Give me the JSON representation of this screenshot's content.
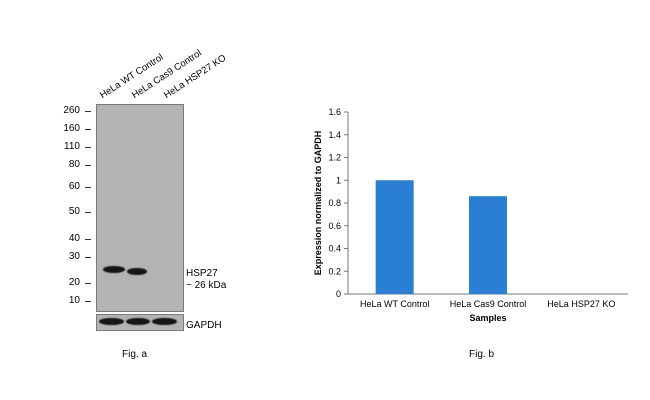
{
  "fig_a": {
    "lanes": [
      "HeLa WT Control",
      "HeLa Cas9 Control",
      "HeLa HSP27 KO"
    ],
    "markers": [
      "260",
      "160",
      "110",
      "80",
      "60",
      "50",
      "40",
      "30",
      "20",
      "10"
    ],
    "band_label_1": "HSP27",
    "band_label_2": "~ 26 kDa",
    "loading_control": "GAPDH",
    "caption": "Fig. a"
  },
  "chart_data": {
    "type": "bar",
    "categories": [
      "HeLa WT Control",
      "HeLa Cas9 Control",
      "HeLa HSP27 KO"
    ],
    "values": [
      1.0,
      0.86,
      0.0
    ],
    "xlabel": "Samples",
    "ylabel": "Expression normalized to GAPDH",
    "ylim": [
      0,
      1.6
    ],
    "yticks": [
      0,
      0.2,
      0.4,
      0.6,
      0.8,
      1,
      1.2,
      1.4,
      1.6
    ],
    "ytick_labels": [
      "0",
      "0.2",
      "0.4",
      "0.6",
      "0.8",
      "1",
      "1.2",
      "1.4",
      "1.6"
    ],
    "bar_color": "#2a7fd4",
    "grid": false,
    "caption": "Fig. b"
  }
}
